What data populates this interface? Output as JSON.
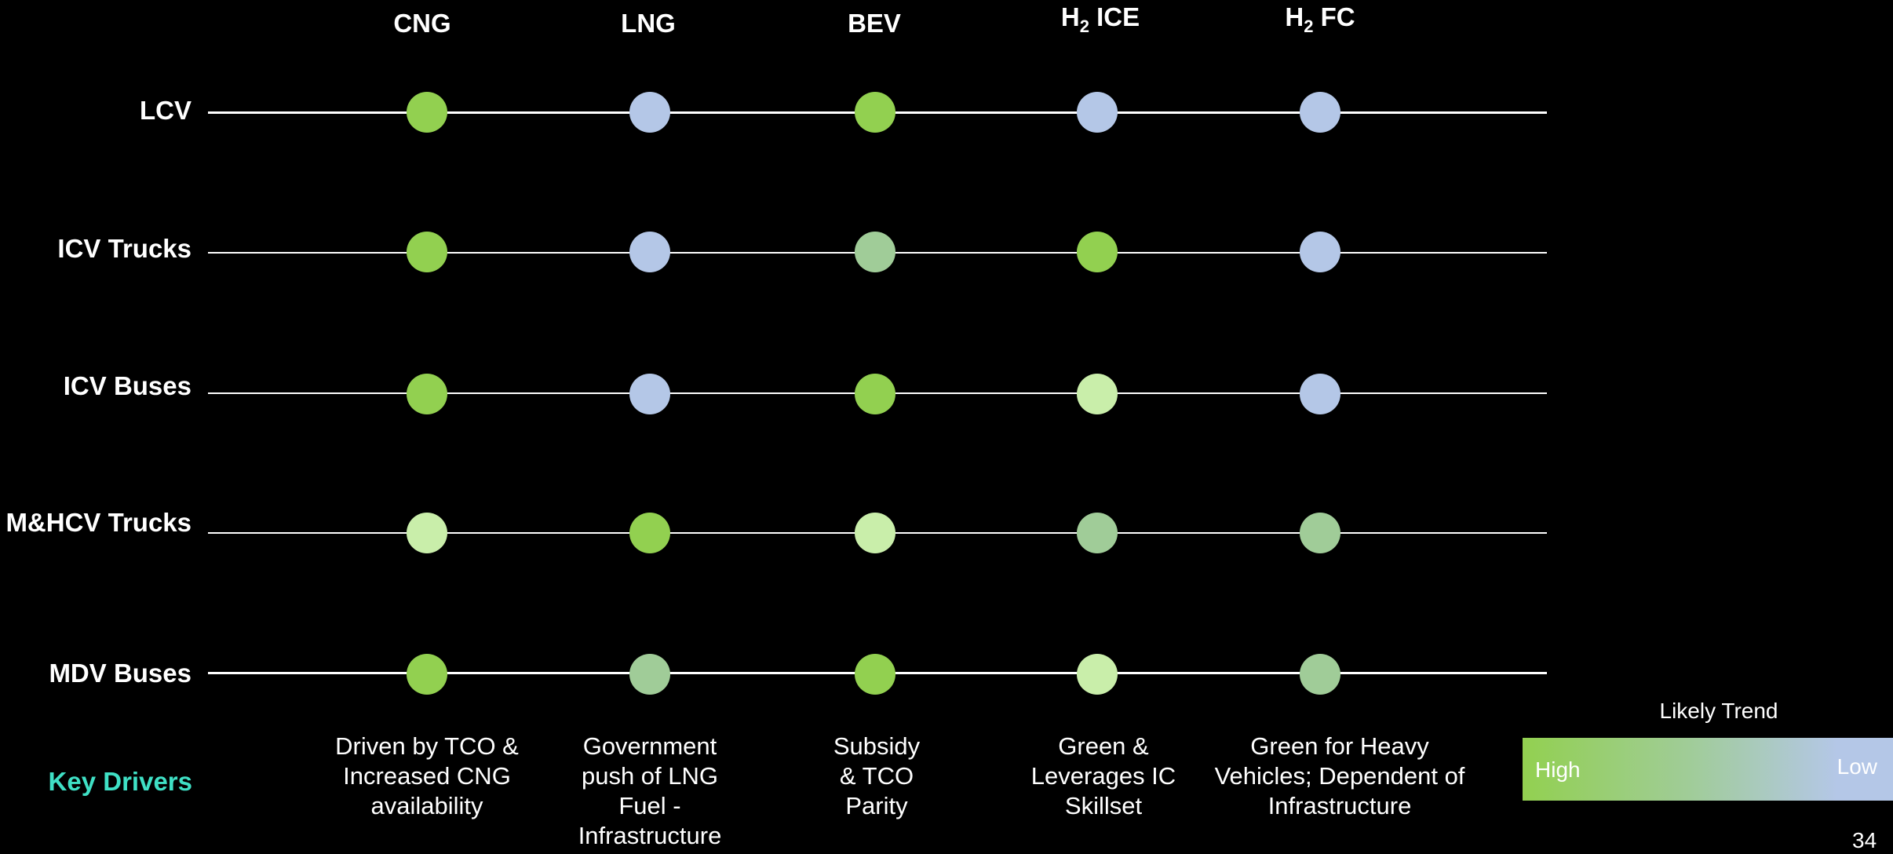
{
  "columns": [
    {
      "label": "CNG"
    },
    {
      "label": "LNG"
    },
    {
      "label": "BEV"
    },
    {
      "label": "H",
      "sub": "2",
      "suffix": " ICE"
    },
    {
      "label": "H",
      "sub": "2",
      "suffix": " FC"
    }
  ],
  "rows": [
    {
      "label": "LCV",
      "levels": [
        "high",
        "low",
        "high",
        "low",
        "low"
      ]
    },
    {
      "label": "ICV Trucks",
      "levels": [
        "high",
        "low",
        "medium",
        "high",
        "low"
      ]
    },
    {
      "label": "ICV Buses",
      "levels": [
        "high",
        "low",
        "high",
        "light",
        "low"
      ]
    },
    {
      "label": "M&HCV Trucks",
      "levels": [
        "light",
        "high",
        "light",
        "medium",
        "medium"
      ]
    },
    {
      "label": "MDV Buses",
      "levels": [
        "high",
        "medium",
        "high",
        "light",
        "medium"
      ]
    }
  ],
  "key_drivers": {
    "label": "Key Drivers",
    "items": [
      "Driven by TCO & Increased CNG availability",
      "Government push of LNG Fuel - Infrastructure",
      "Subsidy & TCO Parity",
      "Green & Leverages IC Skillset",
      "Green for Heavy Vehicles; Dependent of Infrastructure"
    ]
  },
  "legend": {
    "title": "Likely Trend",
    "high_label": "High",
    "low_label": "Low"
  },
  "colors": {
    "high": "#92d050",
    "medium": "#a0cc98",
    "light": "#c9eeaa",
    "low": "#b4c7e7",
    "key_drivers": "#3fe0c5",
    "line": "#ffffff",
    "background": "#000000"
  },
  "page_number": "34"
}
